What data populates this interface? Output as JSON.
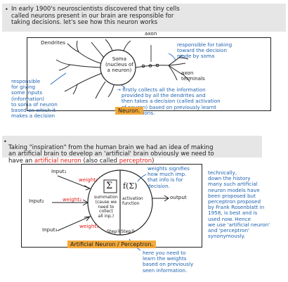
{
  "intro": {
    "bullet": "•",
    "text": "In early 1900's neuroscientists discovered that tiny cells\ncalled neurons present in our brain are responsible for\ntaking decisions. let's see how this neuron works"
  },
  "neuron": {
    "axon": "axon",
    "dendrites": "Dendrites",
    "soma": "Soma\n(nucleus of\na neuron)",
    "axon_terminals": "axon\nterminals",
    "note_right": "responsible for taking\ntoward the decision\nmade by soma",
    "note_left": "responsible\nfor giving\nsome inputs\n(information)\nto soma of neuron\nbased on which it\nmakes a decision",
    "note_bottom": "→ firstly collects all the information\n   provided by all the dendrites and\n   then takes a decision (called activation\n   of neuron) based on previously learnt\n   informations.",
    "caption": "Neuron."
  },
  "middle": {
    "bullet": "•",
    "line1": "Taking \"inspiration\" from the human brain we had an idea of making",
    "line2": "an artificial brain to develop an 'artificial' brain obviously we need to",
    "line3_a": "have an ",
    "line3_b": "artificial neuron",
    "line3_c": " (also called ",
    "line3_d": "perceptron",
    "line3_e": ")"
  },
  "perceptron": {
    "input1": "Input₁",
    "input2": "Input₂",
    "input3": "Input₃",
    "weight1": "weight₁",
    "weight2": "weight₂",
    "weight3": "weight₃",
    "sum_symbol": "Σ",
    "func_symbol": "f(Σ)",
    "summation": "summation\n(cause we\nneed to\ncollect\nall inp.)",
    "activation": "activation\nfunction",
    "step1": "Step①",
    "step2": "Step②",
    "output": "output",
    "weights_note": "weights signifies\nhow much imp.\nthat info is for\ndecision.",
    "caption": "Artificial Neuron / Perceptron.",
    "footer_note": "here you need to\nlearn the weights\nbased on previously\nseen information."
  },
  "side_note": {
    "text": "technically,\ndown the history\nmany such artificial\nneuron models have\nbeen proposed but\nperceptron proposed\nby Frank Rosenblatt in\n1958, is best and is\nused now. Hence\nwe use 'artificial neuron'\nand 'perceptron'\nsynonymously."
  },
  "colors": {
    "blue_ink": "#1e63b0",
    "red_ink": "#e0201a",
    "highlight": "#f2a93b",
    "box": "#e6e6e6"
  }
}
